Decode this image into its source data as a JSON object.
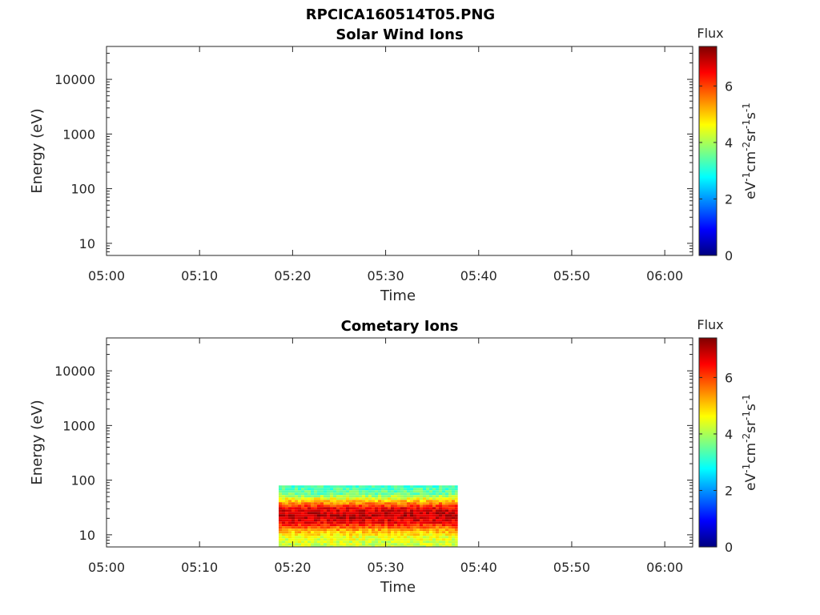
{
  "figure": {
    "title": "RPCICA160514T05.PNG"
  },
  "chart_data": [
    {
      "type": "heatmap",
      "title": "Solar Wind Ions",
      "xlabel": "Time",
      "ylabel": "Energy (eV)",
      "x_range": [
        "05:00",
        "06:03"
      ],
      "x_ticks": [
        "05:00",
        "05:10",
        "05:20",
        "05:30",
        "05:40",
        "05:50",
        "06:00"
      ],
      "y_scale": "log",
      "y_range": [
        6,
        40000
      ],
      "y_ticks": [
        10,
        100,
        1000,
        10000
      ],
      "y_tick_labels": [
        "10",
        "100",
        "1000",
        "10000"
      ],
      "colorbar": {
        "title": "Flux",
        "label": "eV",
        "label_parts": [
          "eV",
          "-1",
          "cm",
          "-2",
          "sr",
          "-1",
          "s",
          "-1"
        ],
        "range": [
          0,
          7.4
        ],
        "ticks": [
          0,
          2,
          4,
          6
        ],
        "tick_labels": [
          "0",
          "2",
          "4",
          "6"
        ],
        "colormap": "jet"
      },
      "regions": []
    },
    {
      "type": "heatmap",
      "title": "Cometary Ions",
      "xlabel": "Time",
      "ylabel": "Energy (eV)",
      "x_range": [
        "05:00",
        "06:03"
      ],
      "x_ticks": [
        "05:00",
        "05:10",
        "05:20",
        "05:30",
        "05:40",
        "05:50",
        "06:00"
      ],
      "y_scale": "log",
      "y_range": [
        6,
        40000
      ],
      "y_ticks": [
        10,
        100,
        1000,
        10000
      ],
      "y_tick_labels": [
        "10",
        "100",
        "1000",
        "10000"
      ],
      "colorbar": {
        "title": "Flux",
        "label": "eV",
        "label_parts": [
          "eV",
          "-1",
          "cm",
          "-2",
          "sr",
          "-1",
          "s",
          "-1"
        ],
        "range": [
          0,
          7.4
        ],
        "ticks": [
          0,
          2,
          4,
          6
        ],
        "tick_labels": [
          "0",
          "2",
          "4",
          "6"
        ],
        "colormap": "jet"
      },
      "regions": [
        {
          "t_start": "05:18:30",
          "t_end": "05:37:45",
          "energy_min": 6,
          "energy_max": 80,
          "profile": [
            {
              "energy": 80,
              "flux": 3.2
            },
            {
              "energy": 55,
              "flux": 3.6
            },
            {
              "energy": 40,
              "flux": 5.2
            },
            {
              "energy": 30,
              "flux": 6.6
            },
            {
              "energy": 22,
              "flux": 7.0
            },
            {
              "energy": 16,
              "flux": 6.4
            },
            {
              "energy": 12,
              "flux": 5.2
            },
            {
              "energy": 9,
              "flux": 4.5
            },
            {
              "energy": 6,
              "flux": 4.2
            }
          ]
        }
      ]
    }
  ]
}
